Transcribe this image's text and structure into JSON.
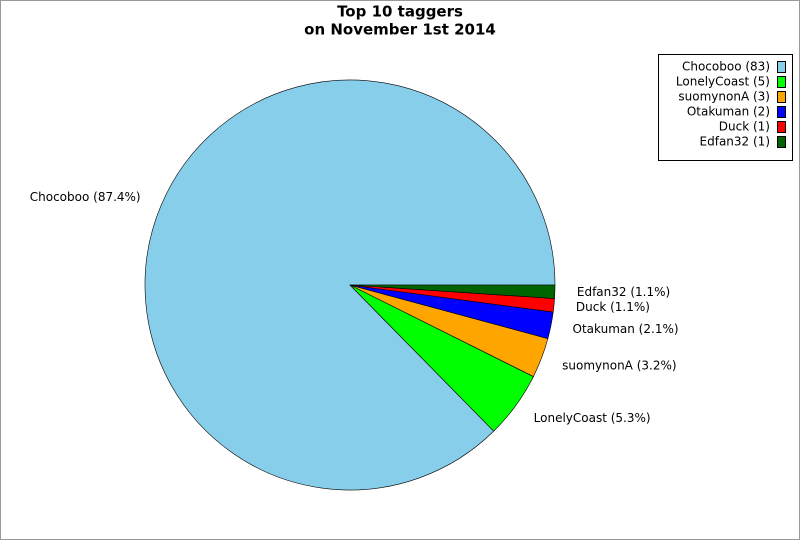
{
  "chart_data": {
    "type": "pie",
    "title": [
      "Top 10 taggers",
      "on November 1st 2014"
    ],
    "categories": [
      "Chocoboo (83)",
      "LonelyCoast (5)",
      "suomynonA (3)",
      "Otakuman (2)",
      "Duck (1)",
      "Edfan32 (1)"
    ],
    "values": [
      83,
      5,
      3,
      2,
      1,
      1
    ],
    "value_labels": [
      "Chocoboo (87.4%)",
      "LonelyCoast (5.3%)",
      "suomynonA (3.2%)",
      "Otakuman (2.1%)",
      "Duck (1.1%)",
      "Edfan32 (1.1%)"
    ],
    "colors": [
      "#87ceeb",
      "#00ff00",
      "#ffa500",
      "#0000ff",
      "#ff0000",
      "#006400"
    ],
    "legend": "upper right"
  }
}
